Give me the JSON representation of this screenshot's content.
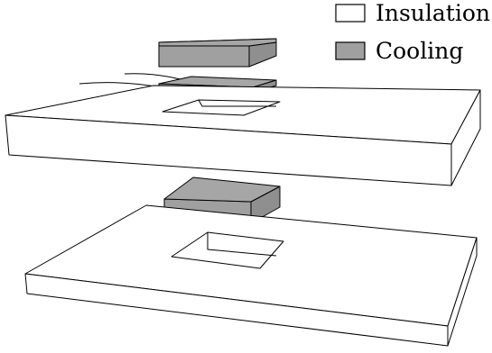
{
  "legend": {
    "items": [
      {
        "label": "Insulation",
        "color": "#ffffff"
      },
      {
        "label": "Cooling",
        "color": "#a0a0a0"
      }
    ]
  },
  "colors": {
    "insulation": "#ffffff",
    "cooling_top": "#a6a6a6",
    "cooling_side": "#8f8f8f",
    "stroke": "#000000"
  }
}
